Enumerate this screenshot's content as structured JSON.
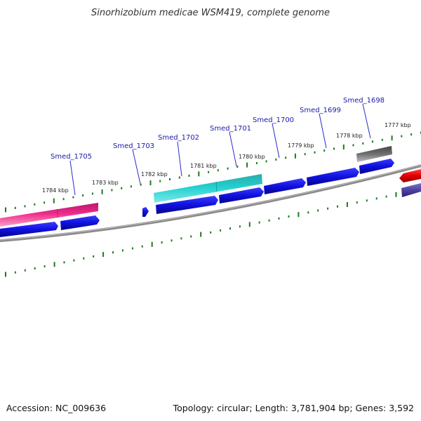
{
  "title": "Sinorhizobium medicae WSM419, complete genome",
  "footer": {
    "accession": "Accession: NC_009636",
    "summary": "Topology: circular; Length: 3,781,904 bp; Genes: 3,592"
  },
  "kbp_labels": [
    "1784 kbp",
    "1783 kbp",
    "1782 kbp",
    "1781 kbp",
    "1780 kbp",
    "1779 kbp",
    "1778 kbp",
    "1777 kbp"
  ],
  "gene_labels": [
    "Smed_1705",
    "Smed_1703",
    "Smed_1702",
    "Smed_1701",
    "Smed_1700",
    "Smed_1699",
    "Smed_1698"
  ],
  "colors": {
    "cds_blue": "#1414dc",
    "teal": "#1cc6c6",
    "magenta": "#e8207e",
    "grey_gene": "#666666",
    "red": "#e81010",
    "purple": "#5a4ea8",
    "backbone": "#8a8a8a",
    "tick_green": "#1d7a1d"
  }
}
